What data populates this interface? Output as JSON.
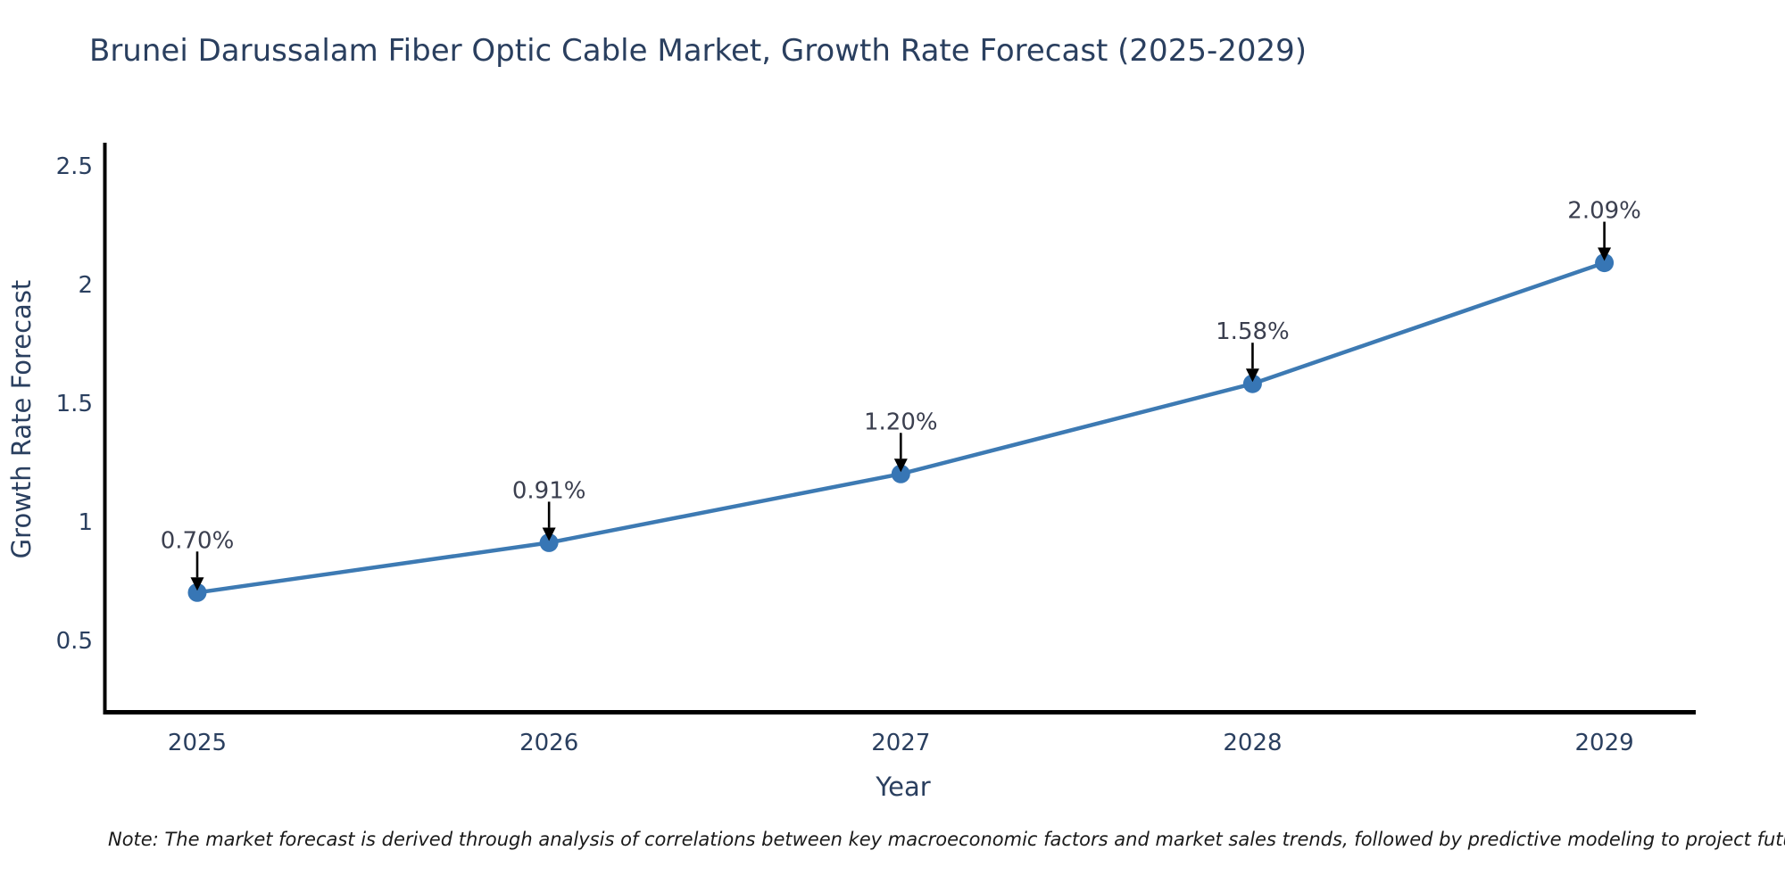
{
  "title": "Brunei Darussalam Fiber Optic Cable Market, Growth Rate Forecast (2025-2029)",
  "note": "Note: The market forecast is derived through analysis of correlations between key macroeconomic factors and market sales trends, followed by predictive modeling to project future sales",
  "chart_data": {
    "type": "line",
    "title": "Brunei Darussalam Fiber Optic Cable Market, Growth Rate Forecast (2025-2029)",
    "xlabel": "Year",
    "ylabel": "Growth Rate Forecast",
    "categories": [
      "2025",
      "2026",
      "2027",
      "2028",
      "2029"
    ],
    "values": [
      0.7,
      0.91,
      1.2,
      1.58,
      2.09
    ],
    "point_labels": [
      "0.70%",
      "0.91%",
      "1.20%",
      "1.58%",
      "2.09%"
    ],
    "yticks": [
      "0.5",
      "1",
      "1.5",
      "2",
      "2.5"
    ],
    "ytick_values": [
      0.5,
      1.0,
      1.5,
      2.0,
      2.5
    ],
    "ylim": [
      0.18,
      2.6
    ],
    "grid": false,
    "legend_position": "none",
    "marker_shape": "circle",
    "annotation_style": "down-arrow",
    "colors": {
      "line": "#3d7ab3",
      "marker": "#3776b5",
      "axis_line": "#000000",
      "arrow": "#000000",
      "title_text": "#2a3f5f",
      "axis_text": "#2a3f5f",
      "annotation_text": "#3b3f4f",
      "note_text": "#1a1a1a",
      "background": "#ffffff"
    }
  }
}
